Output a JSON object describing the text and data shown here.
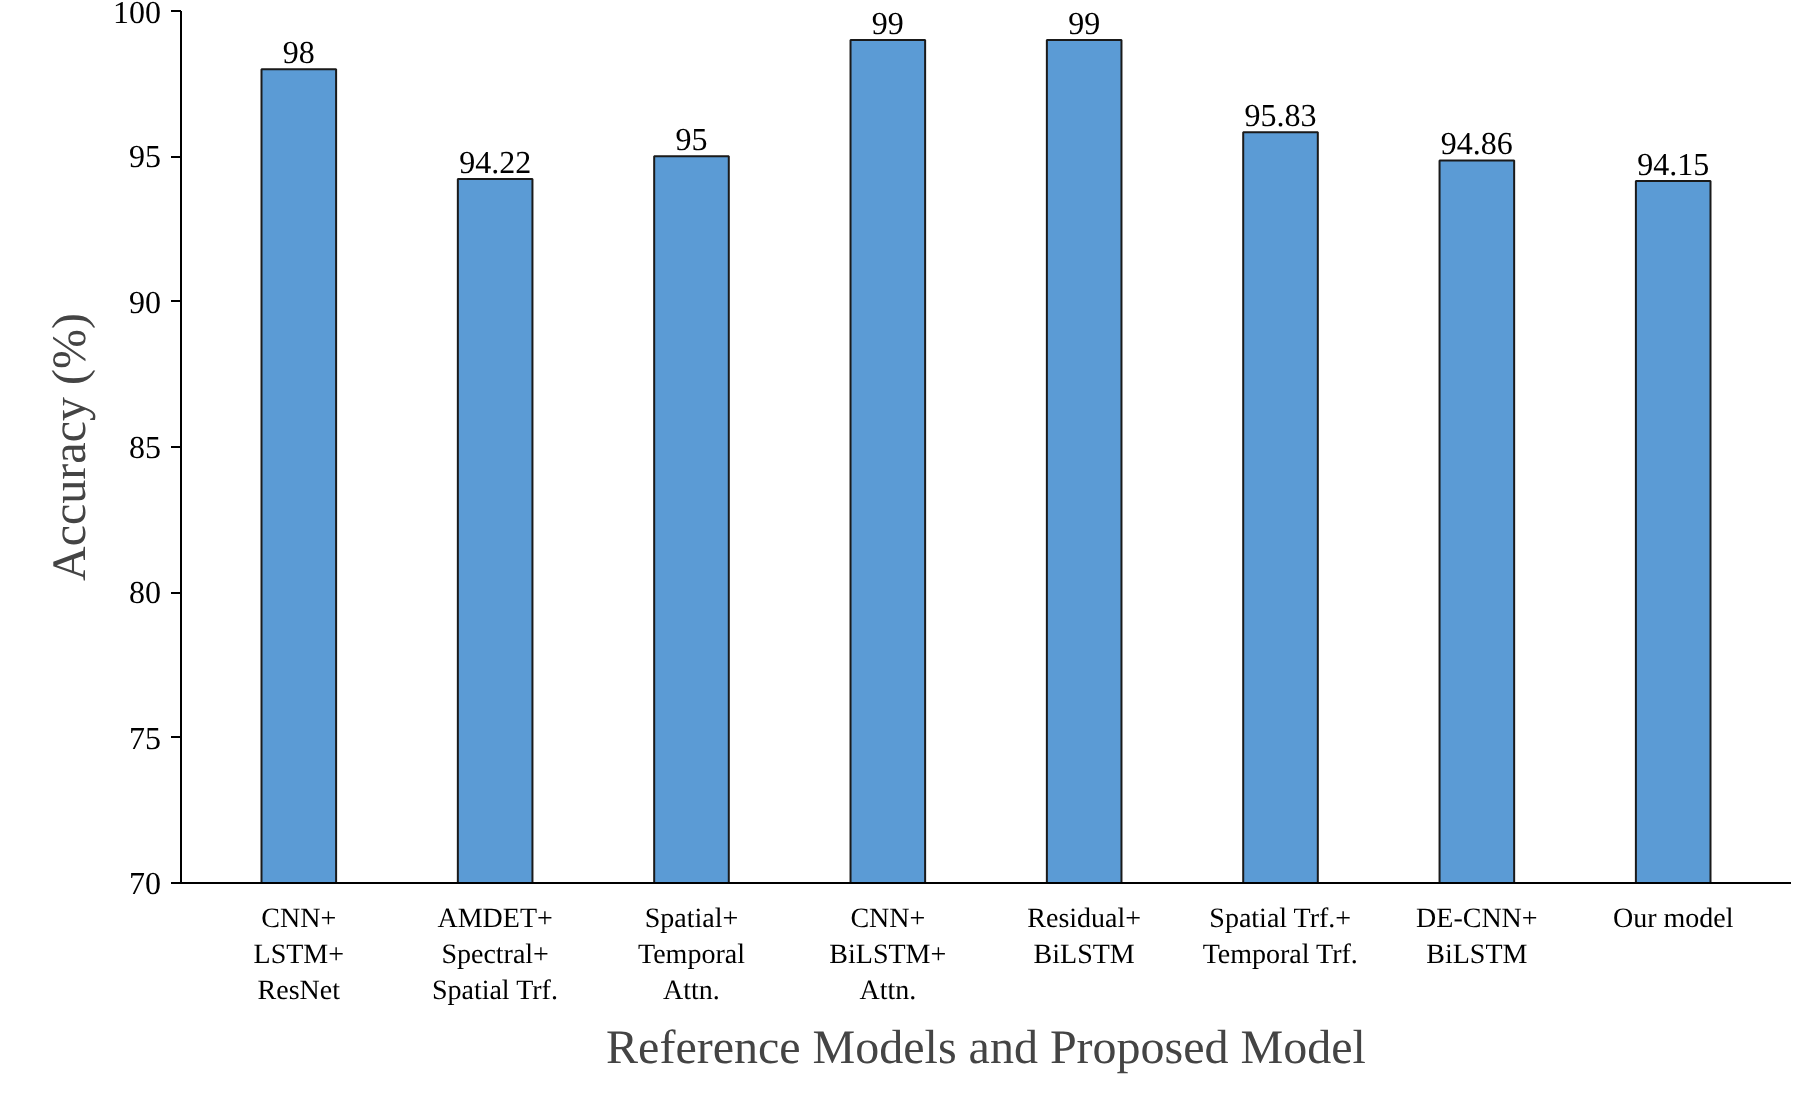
{
  "chart_data": {
    "type": "bar",
    "xlabel": "Reference Models and Proposed Model",
    "ylabel": "Accuracy (%)",
    "categories": [
      "CNN+\nLSTM+\nResNet",
      "AMDET+\nSpectral+\nSpatial Trf.",
      "Spatial+\nTemporal\nAttn.",
      "CNN+\nBiLSTM+\nAttn.",
      "Residual+\nBiLSTM",
      "Spatial Trf.+\nTemporal Trf.",
      "DE-CNN+\nBiLSTM",
      "Our model"
    ],
    "values": [
      98,
      94.22,
      95,
      99,
      99,
      95.83,
      94.86,
      94.15
    ],
    "color": "#5b9bd5",
    "ylim": [
      70,
      100
    ],
    "yticks": [
      70,
      75,
      80,
      85,
      90,
      95,
      100
    ],
    "grid": false,
    "data_labels": true
  }
}
